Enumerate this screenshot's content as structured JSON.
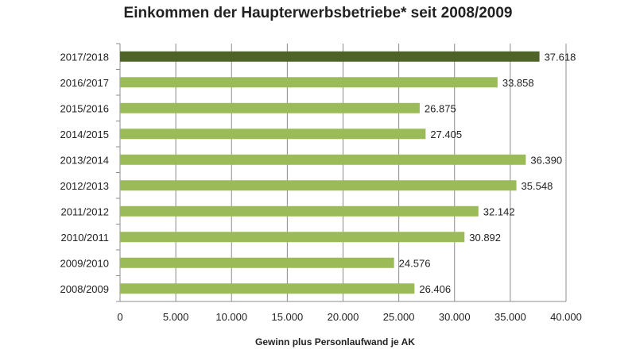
{
  "chart_data": {
    "type": "bar",
    "orientation": "horizontal",
    "title": "Einkommen der Haupterwerbsbetriebe* seit 2008/2009",
    "xlabel": "Gewinn plus Personlaufwand je AK",
    "ylabel": "",
    "categories": [
      "2017/2018",
      "2016/2017",
      "2015/2016",
      "2014/2015",
      "2013/2014",
      "2012/2013",
      "2011/2012",
      "2010/2011",
      "2009/2010",
      "2008/2009"
    ],
    "values": [
      37618,
      33858,
      26875,
      27405,
      36390,
      35548,
      32142,
      30892,
      24576,
      26406
    ],
    "value_labels": [
      "37.618",
      "33.858",
      "26.875",
      "27.405",
      "36.390",
      "35.548",
      "32.142",
      "30.892",
      "24.576",
      "26.406"
    ],
    "xlim": [
      0,
      40000
    ],
    "xticks": [
      0,
      5000,
      10000,
      15000,
      20000,
      25000,
      30000,
      35000,
      40000
    ],
    "xtick_labels": [
      "0",
      "5.000",
      "10.000",
      "15.000",
      "20.000",
      "25.000",
      "30.000",
      "35.000",
      "40.000"
    ],
    "grid": true,
    "colors": {
      "bar": "#9bbb59",
      "highlight_bar": "#4f6228",
      "gridline": "#8c8c8c",
      "text": "#222222"
    },
    "highlight_index": 0
  }
}
